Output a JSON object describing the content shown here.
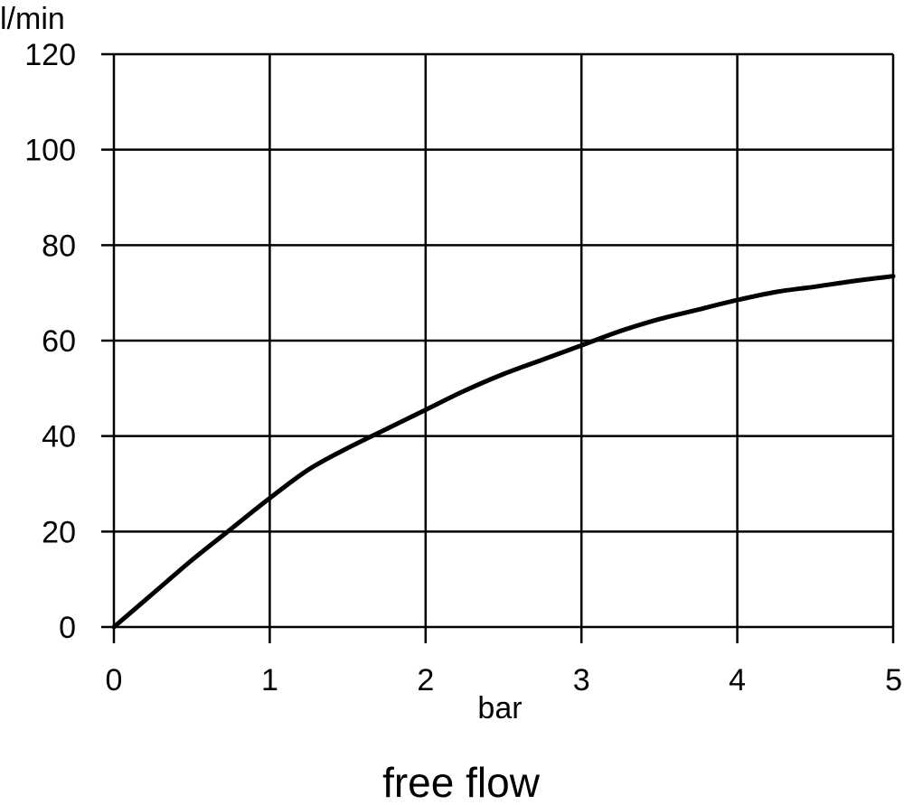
{
  "chart_data": {
    "type": "line",
    "title": "",
    "caption": "free flow",
    "xlabel": "bar",
    "ylabel": "l/min",
    "xlim": [
      0,
      5
    ],
    "ylim": [
      0,
      120
    ],
    "x_ticks": [
      "0",
      "1",
      "2",
      "3",
      "4",
      "5"
    ],
    "y_ticks": [
      "0",
      "20",
      "40",
      "60",
      "80",
      "100",
      "120"
    ],
    "grid": true,
    "series": [
      {
        "x": [
          0,
          0.25,
          0.5,
          0.75,
          1.0,
          1.25,
          1.5,
          1.75,
          2.0,
          2.25,
          2.5,
          2.75,
          3.0,
          3.25,
          3.5,
          3.75,
          4.0,
          4.25,
          4.5,
          4.75,
          5.0
        ],
        "y": [
          0,
          7,
          14,
          20.5,
          27,
          33,
          37.5,
          41.5,
          45.5,
          49.5,
          53,
          56,
          59,
          62,
          64.5,
          66.5,
          68.5,
          70.2,
          71.3,
          72.5,
          73.5
        ],
        "color": "#000000"
      }
    ]
  }
}
